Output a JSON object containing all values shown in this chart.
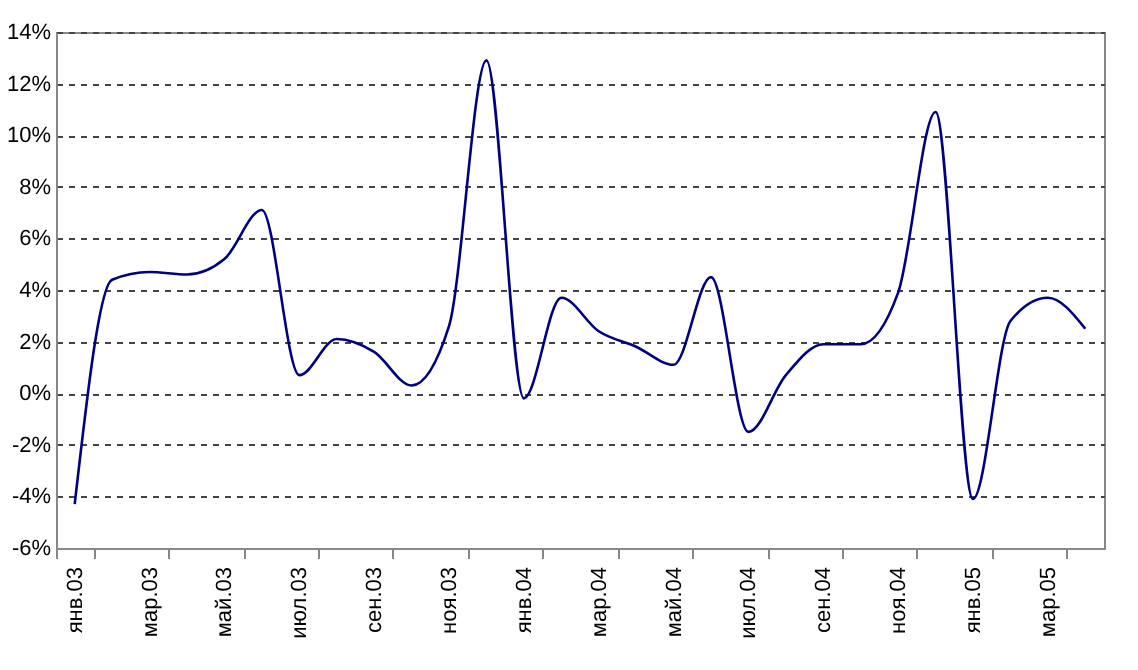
{
  "chart_data": {
    "type": "line",
    "categories": [
      "янв.03",
      null,
      "мар.03",
      null,
      "май.03",
      null,
      "июл.03",
      null,
      "сен.03",
      null,
      "ноя.03",
      null,
      "янв.04",
      null,
      "мар.04",
      null,
      "май.04",
      null,
      "июл.04",
      null,
      "сен.04",
      null,
      "ноя.04",
      null,
      "янв.05",
      null,
      "мар.05",
      null
    ],
    "series": [
      {
        "color": "#000080",
        "values": [
          -4.3,
          4.4,
          4.7,
          4.6,
          5.2,
          7.1,
          0.7,
          2.1,
          1.6,
          0.3,
          2.6,
          12.9,
          -0.2,
          3.7,
          2.4,
          1.8,
          1.1,
          4.5,
          -1.5,
          0.7,
          1.9,
          1.9,
          3.9,
          10.9,
          -4.1,
          2.8,
          3.7,
          2.5
        ]
      }
    ],
    "ylim": [
      -6,
      14
    ],
    "yticks": [
      {
        "value": -6,
        "label": "-6%"
      },
      {
        "value": -4,
        "label": "-4%"
      },
      {
        "value": -2,
        "label": "-2%"
      },
      {
        "value": 0,
        "label": "0%"
      },
      {
        "value": 2,
        "label": "2%"
      },
      {
        "value": 4,
        "label": "4%"
      },
      {
        "value": 6,
        "label": "6%"
      },
      {
        "value": 8,
        "label": "8%"
      },
      {
        "value": 10,
        "label": "10%"
      },
      {
        "value": 12,
        "label": "12%"
      },
      {
        "value": 14,
        "label": "14%"
      }
    ],
    "grid": "y"
  }
}
